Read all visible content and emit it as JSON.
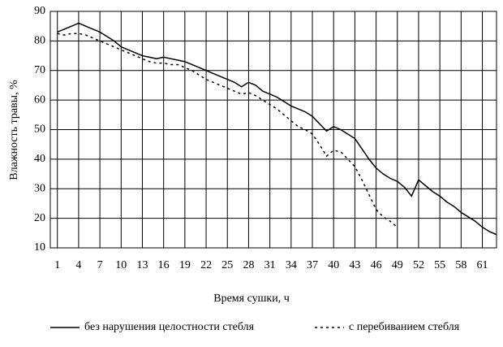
{
  "chart_data": {
    "type": "line",
    "x_label": "Время сушки, ч",
    "y_label": "Влажность травы, %",
    "x": [
      1,
      2,
      3,
      4,
      5,
      6,
      7,
      8,
      9,
      10,
      11,
      12,
      13,
      14,
      15,
      16,
      17,
      18,
      19,
      20,
      21,
      22,
      23,
      24,
      25,
      26,
      27,
      28,
      29,
      30,
      31,
      32,
      33,
      34,
      35,
      36,
      37,
      38,
      39,
      40,
      41,
      42,
      43,
      44,
      45,
      46,
      47,
      48,
      49,
      50,
      51,
      52,
      53,
      54,
      55,
      56,
      57,
      58,
      59,
      60,
      61,
      62,
      63
    ],
    "series": [
      {
        "name": "без нарушения целостности стебля",
        "color": "#000000",
        "dash": "solid",
        "values": [
          83,
          84,
          85,
          86,
          85,
          84,
          83,
          81.5,
          80,
          78,
          77,
          76,
          75,
          74.5,
          74,
          74.5,
          74,
          73.5,
          73,
          72,
          71,
          70,
          69,
          68,
          67,
          66,
          64.5,
          66,
          65,
          63,
          62,
          61,
          59.5,
          58,
          57,
          56,
          54.5,
          52,
          49.5,
          51,
          50,
          48.5,
          47,
          43.5,
          40,
          37,
          35,
          33.5,
          32.5,
          30.5,
          27.5,
          33,
          31,
          29,
          27.5,
          25.5,
          24,
          22,
          20.5,
          19,
          17,
          15.5,
          14.5
        ]
      },
      {
        "name": "с перебиванием стебля",
        "color": "#000000",
        "dash": "dashed",
        "values": [
          82.5,
          82,
          82.5,
          82.5,
          82,
          81,
          80,
          79,
          78,
          77,
          76,
          75,
          74,
          73,
          72.5,
          72.5,
          72,
          72,
          71,
          70,
          68.5,
          67,
          66,
          65,
          64,
          63,
          62,
          62.5,
          61.5,
          60,
          58.5,
          57,
          55,
          53,
          51,
          50,
          48.5,
          45,
          41,
          43,
          42.5,
          40,
          37.5,
          33,
          28,
          23,
          20.5,
          19,
          17,
          null,
          null,
          null,
          null,
          null,
          null,
          null,
          null,
          null,
          null,
          null,
          null,
          null,
          null
        ]
      }
    ],
    "xlim": [
      0,
      63
    ],
    "xticks": [
      1,
      4,
      7,
      10,
      13,
      16,
      19,
      22,
      25,
      28,
      31,
      34,
      37,
      40,
      43,
      46,
      49,
      52,
      55,
      58,
      61
    ],
    "ylim": [
      10,
      90
    ],
    "yticks": [
      10,
      20,
      30,
      40,
      50,
      60,
      70,
      80,
      90
    ],
    "grid": true,
    "legend": "bottom"
  }
}
